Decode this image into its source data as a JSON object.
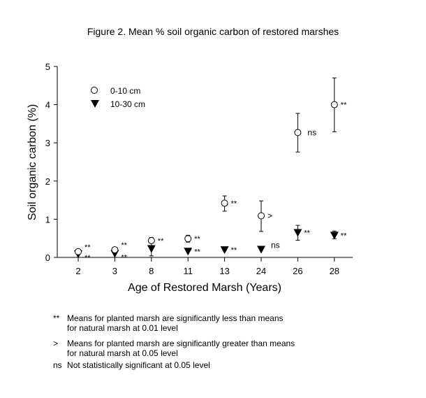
{
  "chart_data": {
    "type": "scatter",
    "title": "Figure 2.  Mean % soil organic carbon of restored marshes",
    "xlabel": "Age of Restored Marsh  (Years)",
    "ylabel": "Soil organic carbon  (%)",
    "categories": [
      "2",
      "3",
      "8",
      "11",
      "13",
      "24",
      "26",
      "28"
    ],
    "ylim": [
      0,
      5
    ],
    "yticks": [
      "0",
      "1",
      "2",
      "3",
      "4",
      "5"
    ],
    "grid": false,
    "legend_placement": "top-left",
    "series": [
      {
        "name": "0-10 cm",
        "marker": "open-circle",
        "values": [
          0.15,
          0.2,
          0.44,
          0.49,
          1.42,
          1.09,
          3.27,
          4.0
        ],
        "err_high": [
          null,
          null,
          0.52,
          0.58,
          1.61,
          1.48,
          3.77,
          4.7
        ],
        "err_low": [
          null,
          null,
          0.38,
          0.4,
          1.21,
          0.68,
          2.76,
          3.29
        ],
        "annotations": [
          "**",
          "**",
          "**",
          "**",
          "**",
          ">",
          "ns",
          "**"
        ]
      },
      {
        "name": "10-30 cm",
        "marker": "filled-down-triangle",
        "values": [
          0.09,
          0.1,
          0.23,
          0.16,
          0.2,
          0.21,
          0.65,
          0.58
        ],
        "err_high": [
          null,
          null,
          0.4,
          null,
          null,
          null,
          0.84,
          0.69
        ],
        "err_low": [
          null,
          null,
          0.04,
          null,
          null,
          null,
          0.45,
          0.49
        ],
        "annotations": [
          "**",
          "**",
          "",
          "**",
          "**",
          "ns",
          "**",
          "**"
        ]
      }
    ]
  },
  "footnotes": [
    {
      "symbol": "**",
      "line1": "Means for planted marsh are significantly less than means",
      "line2": "for natural marsh at 0.01 level"
    },
    {
      "symbol": ">",
      "line1": "Means for planted marsh are significantly greater than means",
      "line2": "for natural marsh at 0.05 level"
    },
    {
      "symbol": "ns",
      "line1": "Not statistically significant at 0.05 level",
      "line2": ""
    }
  ]
}
